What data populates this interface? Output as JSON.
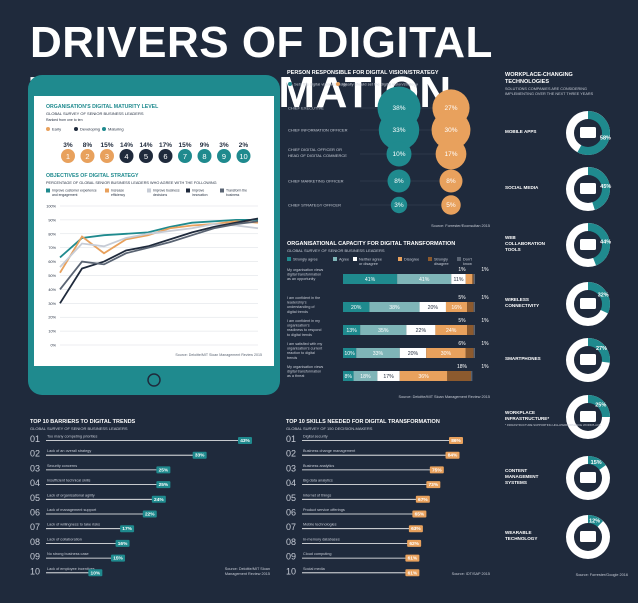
{
  "title": "DRIVERS OF DIGITAL TRANSFORMATION",
  "maturity": {
    "title": "ORGANISATION'S DIGITAL MATURITY LEVEL",
    "sub": "GLOBAL SURVEY OF SENIOR BUSINESS LEADERS",
    "ranked": "Ranked from one to ten",
    "legend": [
      "Early",
      "Developing",
      "Maturing"
    ],
    "percents": [
      "3%",
      "8%",
      "15%",
      "14%",
      "14%",
      "17%",
      "15%",
      "9%",
      "3%",
      "2%"
    ],
    "levels": [
      "1",
      "2",
      "3",
      "4",
      "5",
      "6",
      "7",
      "8",
      "9",
      "10"
    ],
    "colors": [
      "#e8a15d",
      "#e8a15d",
      "#e8a15d",
      "#1f2a3c",
      "#1f2a3c",
      "#1f2a3c",
      "#1f8a8e",
      "#1f8a8e",
      "#1f8a8e",
      "#1f8a8e"
    ]
  },
  "objectives": {
    "title": "OBJECTIVES OF DIGITAL STRATEGY",
    "sub": "PERCENTAGE OF GLOBAL SENIOR BUSINESS LEADERS WHO AGREE WITH THE FOLLOWING",
    "legend": [
      {
        "label": "Improve customer experience and engagement",
        "color": "#1f8a8e"
      },
      {
        "label": "Increase efficiency",
        "color": "#e8a15d"
      },
      {
        "label": "Improve business decisions",
        "color": "#c7ccd6"
      },
      {
        "label": "Improve innovation",
        "color": "#1f2a3c"
      },
      {
        "label": "Transform the business",
        "color": "#5a6473"
      }
    ],
    "source": "Source: Deloitte/MIT Sloan Management Review 2015"
  },
  "chart_data": [
    {
      "type": "line",
      "title": "OBJECTIVES OF DIGITAL STRATEGY",
      "x": [
        "1",
        "2",
        "3",
        "4",
        "5",
        "6",
        "7",
        "8",
        "9",
        "10"
      ],
      "yticks": [
        "100%",
        "90%",
        "80%",
        "70%",
        "60%",
        "50%",
        "40%",
        "30%",
        "20%",
        "10%",
        "0%"
      ],
      "ylim": [
        0,
        100
      ],
      "series": [
        {
          "name": "Improve customer experience and engagement",
          "values": [
            63,
            77,
            79,
            80,
            81,
            85,
            88,
            89,
            90,
            90
          ]
        },
        {
          "name": "Increase efficiency",
          "values": [
            52,
            78,
            66,
            76,
            79,
            84,
            86,
            87,
            89,
            88
          ]
        },
        {
          "name": "Improve business decisions",
          "values": [
            56,
            73,
            71,
            77,
            80,
            82,
            84,
            87,
            86,
            84
          ]
        },
        {
          "name": "Improve innovation",
          "values": [
            30,
            55,
            60,
            68,
            71,
            76,
            81,
            85,
            88,
            91
          ]
        },
        {
          "name": "Transform the business",
          "values": [
            40,
            60,
            58,
            66,
            70,
            74,
            79,
            84,
            87,
            89
          ]
        }
      ]
    },
    {
      "type": "bar",
      "title": "TOP 10 BARRIERS TO DIGITAL TRENDS",
      "categories": [
        "Too many competing priorities",
        "Lack of an overall strategy",
        "Security concerns",
        "Insufficient technical skills",
        "Lack of organisational agility",
        "Lack of management support",
        "Lack of willingness to take risks",
        "Lack of collaboration",
        "No strong business case",
        "Lack of employee incentives"
      ],
      "values": [
        43,
        33,
        25,
        25,
        24,
        22,
        17,
        16,
        15,
        10
      ]
    },
    {
      "type": "bar",
      "title": "TOP 10 SKILLS NEEDED FOR DIGITAL TRANSFORMATION",
      "categories": [
        "Digital security",
        "Business change management",
        "Business analytics",
        "Big data analytics",
        "Internet of things",
        "Product service offerings",
        "Mobile technologies",
        "In-memory databases",
        "Cloud computing",
        "Social media"
      ],
      "values": [
        86,
        84,
        75,
        73,
        67,
        65,
        63,
        62,
        61,
        61
      ]
    },
    {
      "type": "bar",
      "title": "ORGANISATIONAL CAPACITY FOR DIGITAL TRANSFORMATION",
      "categories": [
        "My organisation views digital transformation as an opportunity",
        "I am confident in the leadership's understanding of digital trends",
        "I am confident in my organisation's readiness to respond to digital trends",
        "I am satisfied with my organisation's current reaction to digital trends",
        "My organisation views digital transformation as a threat"
      ],
      "series": [
        {
          "name": "Strongly agree",
          "values": [
            41,
            20,
            13,
            10,
            8
          ]
        },
        {
          "name": "Agree",
          "values": [
            41,
            38,
            35,
            33,
            18
          ]
        },
        {
          "name": "Neither agree nor disagree",
          "values": [
            11,
            20,
            22,
            20,
            17
          ]
        },
        {
          "name": "Disagree",
          "values": [
            5,
            16,
            24,
            30,
            36
          ]
        },
        {
          "name": "Strongly disagree",
          "values": [
            1,
            5,
            5,
            6,
            18
          ]
        },
        {
          "name": "Don't know",
          "values": [
            1,
            1,
            1,
            1,
            1
          ]
        }
      ]
    },
    {
      "type": "scatter",
      "title": "PERSON RESPONSIBLE FOR DIGITAL VISION/STRATEGY",
      "categories": [
        "CHIEF EXECUTIVE",
        "CHIEF INFORMATION OFFICER",
        "CHIEF DIGITAL OFFICER OR HEAD OF DIGITAL COMMERCE",
        "CHIEF MARKETING OFFICER",
        "CHIEF STRATEGY OFFICER"
      ],
      "series": [
        {
          "name": "Sets the digital vision/strategy",
          "values": [
            38,
            33,
            10,
            8,
            3
          ]
        },
        {
          "name": "Ideally should set the digital vision/strategy",
          "values": [
            27,
            30,
            17,
            8,
            5
          ]
        }
      ]
    },
    {
      "type": "pie",
      "title": "WORKPLACE-CHANGING TECHNOLOGIES",
      "categories": [
        "MOBILE APPS",
        "SOCIAL MEDIA",
        "WEB COLLABORATION TOOLS",
        "WIRELESS CONNECTIVITY",
        "SMARTPHONES",
        "WORKPLACE INFRASTRUCTURE*",
        "CONTENT MANAGEMENT SYSTEMS",
        "WEARABLE TECHNOLOGY"
      ],
      "values": [
        58,
        45,
        44,
        32,
        27,
        25,
        15,
        12
      ]
    }
  ],
  "person": {
    "title": "PERSON RESPONSIBLE FOR DIGITAL VISION/STRATEGY",
    "legend": [
      "Sets the digital vision/strategy",
      "Ideally should set the digital vision/strategy"
    ],
    "roles": [
      "CHIEF EXECUTIVE",
      "CHIEF INFORMATION OFFICER",
      "CHIEF DIGITAL OFFICER OR",
      "HEAD OF DIGITAL COMMERCE",
      "CHIEF MARKETING OFFICER",
      "CHIEF STRATEGY OFFICER"
    ],
    "sets": [
      "38%",
      "33%",
      "10%",
      "8%",
      "3%"
    ],
    "ideal": [
      "27%",
      "30%",
      "17%",
      "8%",
      "5%"
    ],
    "source": "Source: Forrester/Econsultan 2015"
  },
  "capacity": {
    "title": "ORGANISATIONAL CAPACITY FOR DIGITAL TRANSFORMATION",
    "sub": "GLOBAL SURVEY OF SENIOR BUSINESS LEADERS",
    "legend": [
      "Strongly agree",
      "Agree",
      "Neither agree or disagree",
      "Disagree",
      "Strongly disagree",
      "Don't know"
    ],
    "source": "Source: Deloitte/MIT Sloan Management Review 2015"
  },
  "barriers": {
    "title": "TOP 10 BARRIERS TO DIGITAL TRENDS",
    "sub": "GLOBAL SURVEY OF SENIOR BUSINESS LEADERS",
    "numbers": [
      "01",
      "02",
      "03",
      "04",
      "05",
      "06",
      "07",
      "08",
      "09",
      "10"
    ],
    "source": [
      "Source: Deloitte/MIT Sloan",
      "Management Review 2015"
    ]
  },
  "skills": {
    "title": "TOP 10 SKILLS NEEDED FOR DIGITAL TRANSFORMATION",
    "sub": "GLOBAL SURVEY OF 150 DECISION-MAKERS",
    "numbers": [
      "01",
      "02",
      "03",
      "04",
      "05",
      "06",
      "07",
      "08",
      "09",
      "10"
    ],
    "source": "Source: IDT/SAP 2015"
  },
  "workplace": {
    "title": "WORKPLACE-CHANGING TECHNOLOGIES",
    "sub": "SOLUTIONS COMPANIES ARE CONSIDERING IMPLEMENTING OVER THE NEXT THREE YEARS",
    "labels": [
      "MOBILE APPS",
      "SOCIAL MEDIA",
      "WEB COLLABORATION TOOLS",
      "WIRELESS CONNECTIVITY",
      "SMARTPHONES",
      "WORKPLACE INFRASTRUCTURE*",
      "CONTENT MANAGEMENT SYSTEMS",
      "WEARABLE TECHNOLOGY"
    ],
    "pct": [
      "58%",
      "45%",
      "44%",
      "32%",
      "27%",
      "25%",
      "15%",
      "12%"
    ],
    "footnote": "* INFRASTRUCTURE SUPPORTING HIGH-PERFORMANCE WORKPLACE",
    "source": "Source: Forrester/Google 2016"
  },
  "colors": {
    "teal": "#1f8a8e",
    "orange": "#e8a15d",
    "navy": "#1f2a3c",
    "grey": "#c7ccd6",
    "light": "#e9ecef"
  }
}
